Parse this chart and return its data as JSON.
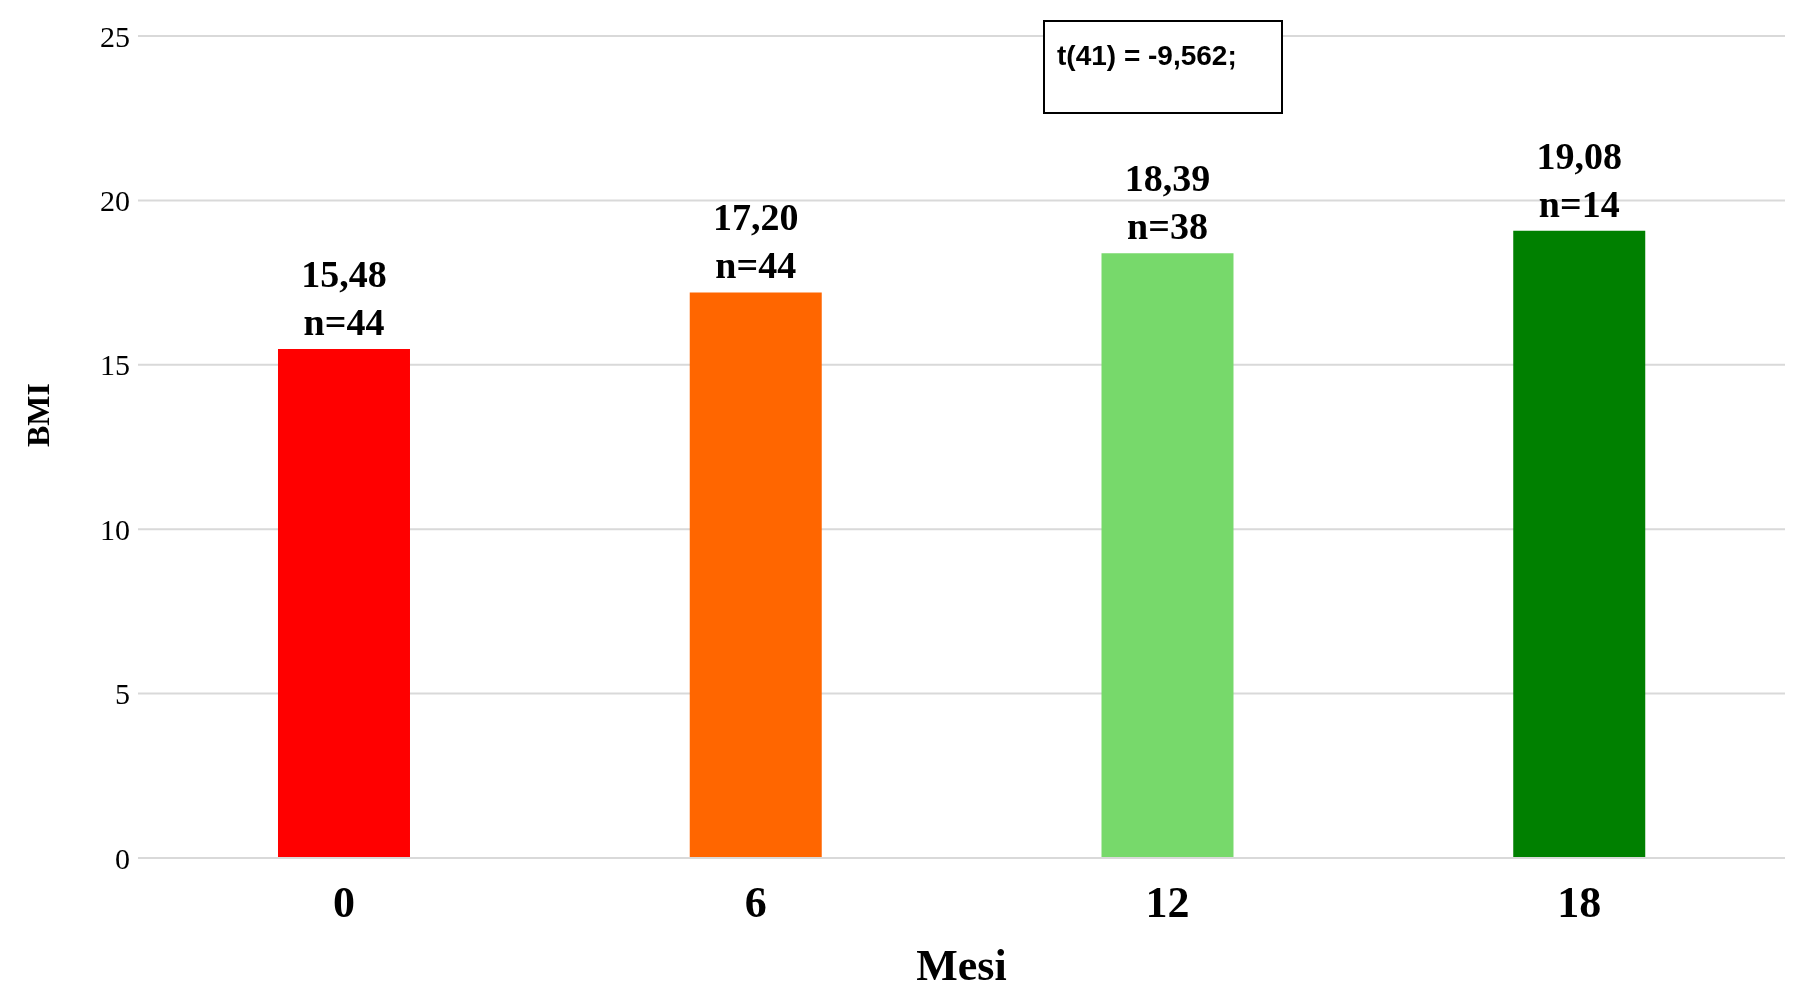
{
  "chart_data": {
    "type": "bar",
    "xlabel": "Mesi",
    "ylabel": "BMI",
    "categories": [
      "0",
      "6",
      "12",
      "18"
    ],
    "values": [
      15.48,
      17.2,
      18.39,
      19.08
    ],
    "colors": [
      "#ff0000",
      "#ff6600",
      "#77d96b",
      "#008000"
    ],
    "value_labels": [
      "15,48\nn=44",
      "17,20\nn=44",
      "18,39\nn=38",
      "19,08\nn=14"
    ],
    "ylim": [
      0,
      25
    ],
    "yticks": [
      0,
      5,
      10,
      15,
      20,
      25
    ],
    "grid": "y",
    "legend": false,
    "annotations": [
      "t(41) = -9,562;"
    ]
  }
}
